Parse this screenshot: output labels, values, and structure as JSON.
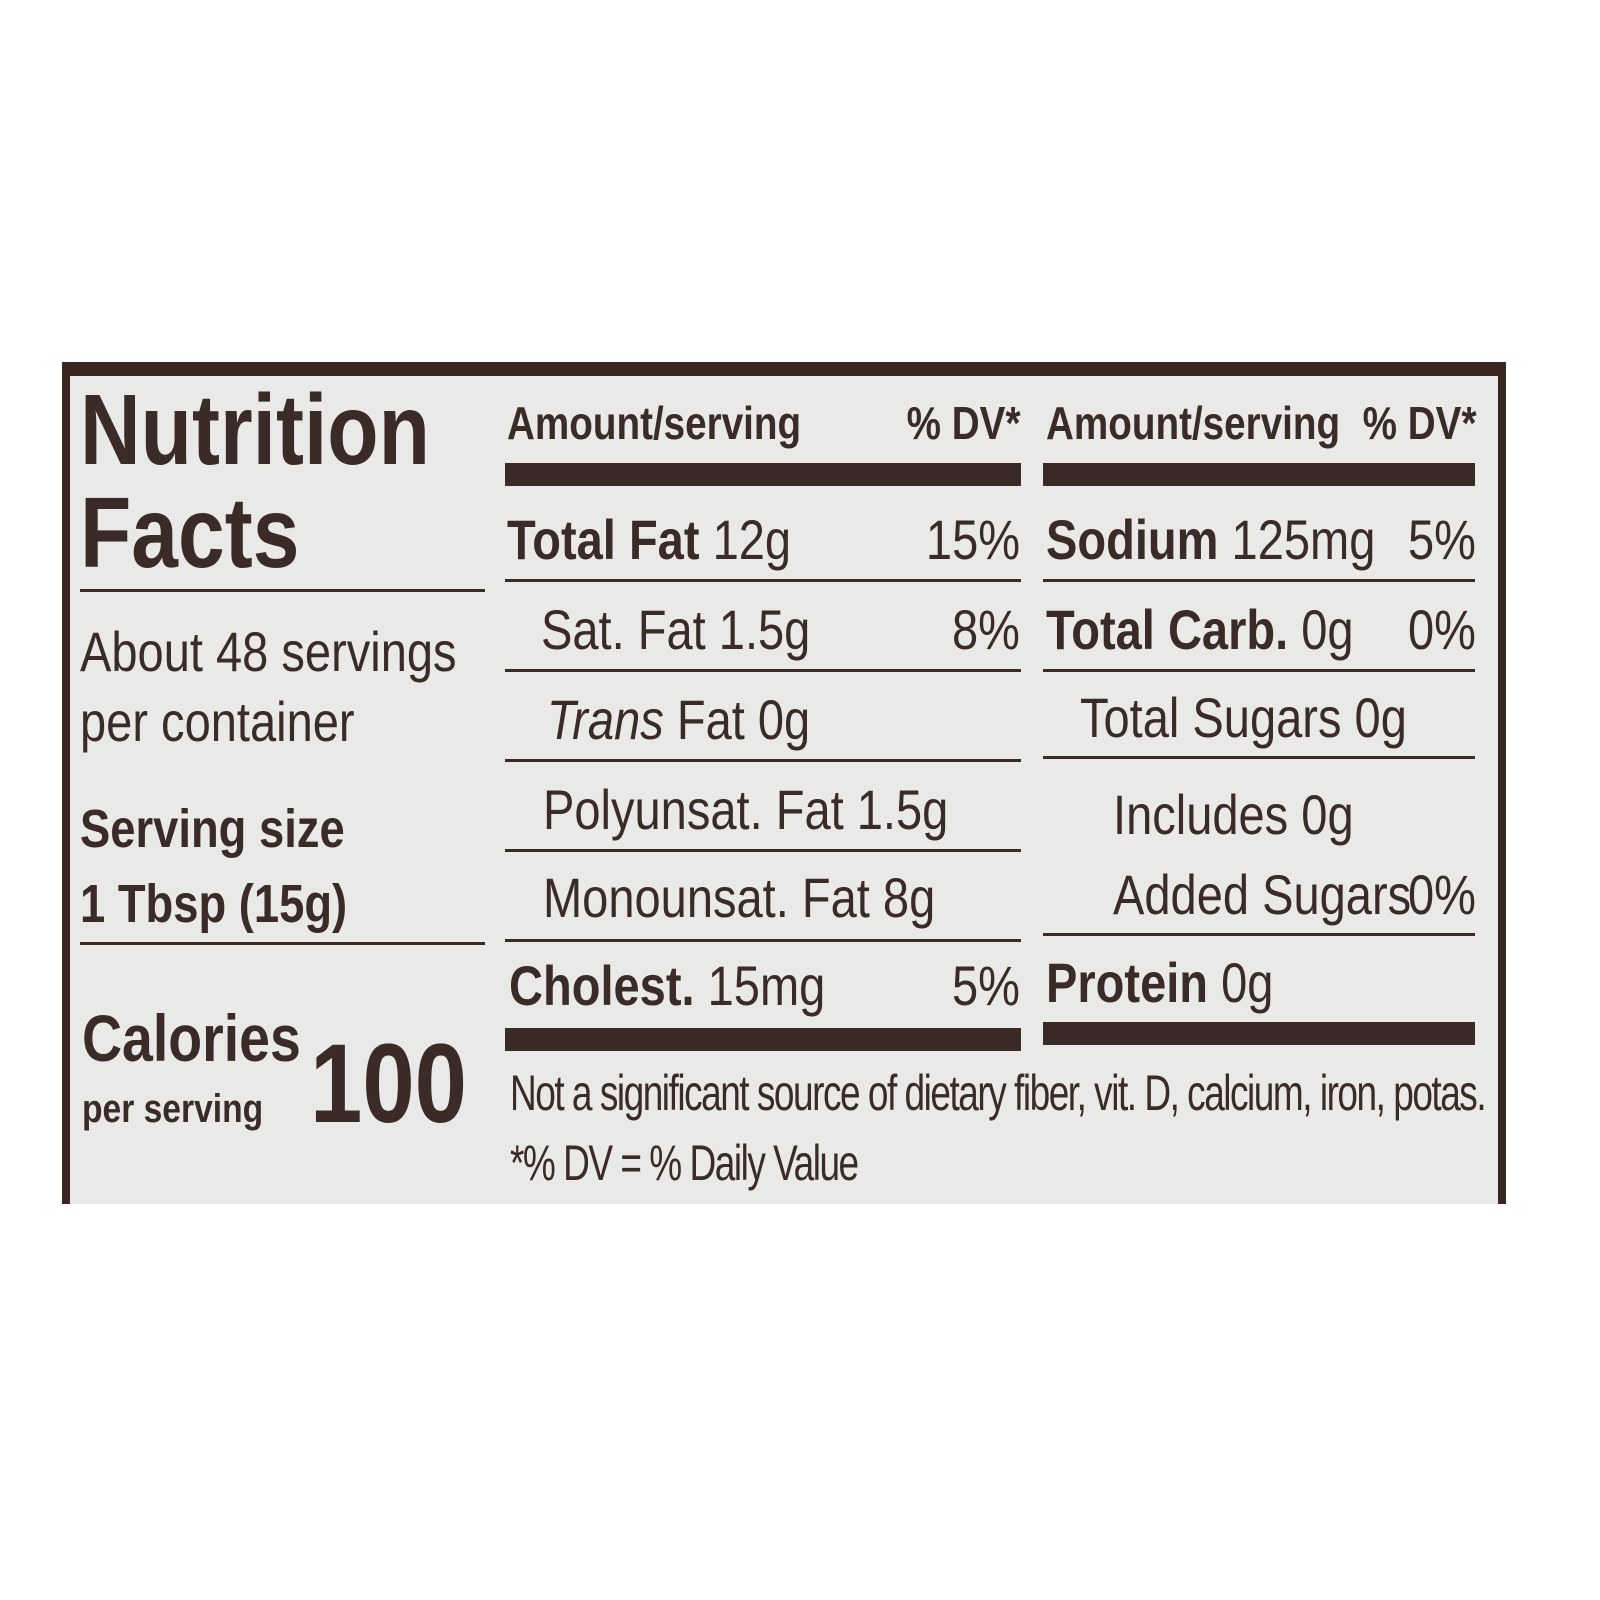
{
  "title": {
    "line1": "Nutrition",
    "line2": "Facts"
  },
  "servings": {
    "line1": "About 48 servings",
    "line2": "per container"
  },
  "serving_size": {
    "label": "Serving size",
    "value": "1 Tbsp (15g)"
  },
  "calories": {
    "label": "Calories",
    "sub": "per serving",
    "value": "100"
  },
  "headers": {
    "amount": "Amount/serving",
    "dv": "% DV*"
  },
  "left_column": [
    {
      "name": "Total Fat",
      "amount": "12g",
      "dv": "15%",
      "bold": true
    },
    {
      "name": "Sat. Fat",
      "amount": "1.5g",
      "dv": "8%"
    },
    {
      "name": "Trans",
      "name_rest": "Fat",
      "amount": "0g",
      "dv": ""
    },
    {
      "name": "Polyunsat. Fat",
      "amount": "1.5g",
      "dv": ""
    },
    {
      "name": "Monounsat. Fat",
      "amount": "8g",
      "dv": ""
    },
    {
      "name": "Cholest.",
      "amount": "15mg",
      "dv": "5%",
      "bold": true
    }
  ],
  "right_column": [
    {
      "name": "Sodium",
      "amount": "125mg",
      "dv": "5%",
      "bold": true
    },
    {
      "name": "Total Carb.",
      "amount": "0g",
      "dv": "0%",
      "bold": true
    },
    {
      "name": "Total Sugars",
      "amount": "0g",
      "dv": ""
    },
    {
      "name": "Includes",
      "amount": "0g",
      "dv": ""
    },
    {
      "name": "Added Sugars",
      "amount": "",
      "dv": "0%"
    },
    {
      "name": "Protein",
      "amount": "0g",
      "dv": "",
      "bold": true
    }
  ],
  "footnote": {
    "line1": "Not a significant source of dietary fiber, vit. D, calcium, iron, potas.",
    "line2": "*% DV = % Daily Value"
  },
  "colors": {
    "ink": "#3a2b29",
    "panel": "#e9e9e8",
    "border": "#3b2521"
  }
}
